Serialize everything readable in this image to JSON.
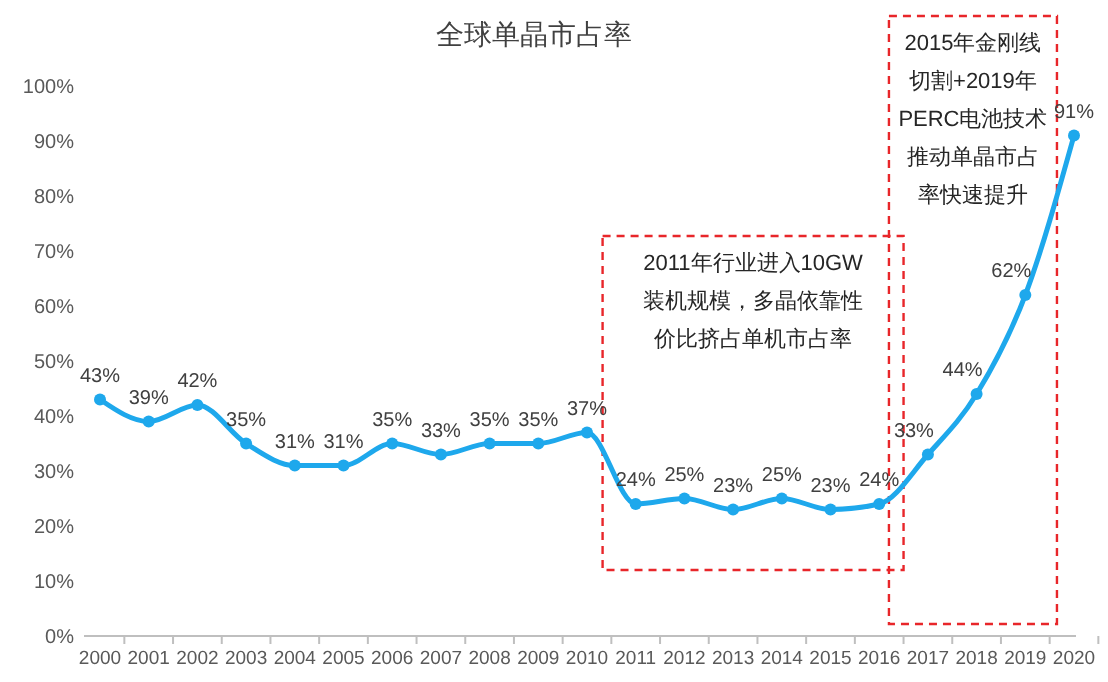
{
  "chart_data": {
    "type": "line",
    "title": "全球单晶市占率",
    "categories": [
      "2000",
      "2001",
      "2002",
      "2003",
      "2004",
      "2005",
      "2006",
      "2007",
      "2008",
      "2009",
      "2010",
      "2011",
      "2012",
      "2013",
      "2014",
      "2015",
      "2016",
      "2017",
      "2018",
      "2019",
      "2020"
    ],
    "series": [
      {
        "color": "#1ea8ec",
        "values": [
          43,
          39,
          42,
          35,
          31,
          31,
          35,
          33,
          35,
          35,
          37,
          24,
          25,
          23,
          25,
          23,
          24,
          33,
          44,
          62,
          91
        ],
        "value_labels": [
          "43%",
          "39%",
          "42%",
          "35%",
          "31%",
          "31%",
          "35%",
          "33%",
          "35%",
          "35%",
          "37%",
          "24%",
          "25%",
          "23%",
          "25%",
          "23%",
          "24%",
          "33%",
          "44%",
          "62%",
          "91%"
        ]
      }
    ],
    "ylim": [
      0,
      100
    ],
    "yticks": [
      {
        "value": 0,
        "label": "0%"
      },
      {
        "value": 10,
        "label": "10%"
      },
      {
        "value": 20,
        "label": "20%"
      },
      {
        "value": 30,
        "label": "30%"
      },
      {
        "value": 40,
        "label": "40%"
      },
      {
        "value": 50,
        "label": "50%"
      },
      {
        "value": 60,
        "label": "60%"
      },
      {
        "value": 70,
        "label": "70%"
      },
      {
        "value": 80,
        "label": "80%"
      },
      {
        "value": 90,
        "label": "90%"
      },
      {
        "value": 100,
        "label": "100%"
      }
    ],
    "grid": false,
    "marker": "circle",
    "line_style": "solid",
    "annotations": [
      "2011年行业进入10GW装机规模，多晶依靠性价比挤占单机市占率",
      "2015年金刚线切割+2019年PERC电池技术推动单晶市占率快速提升"
    ]
  }
}
